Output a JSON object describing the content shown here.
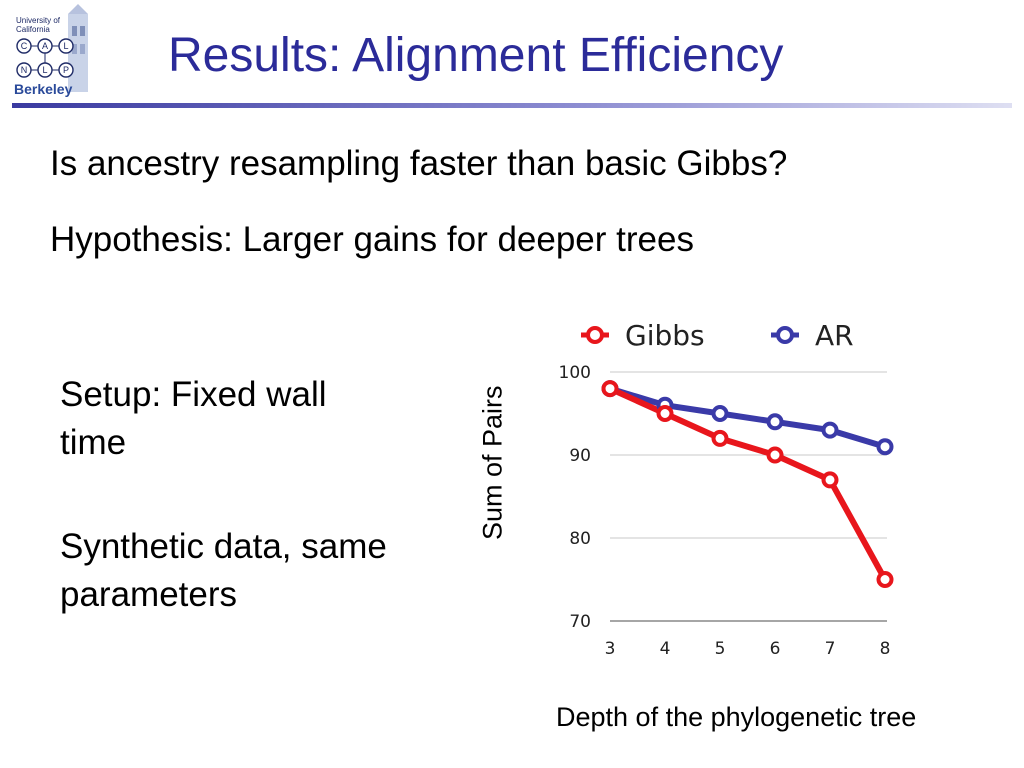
{
  "logo": {
    "top_text": "University of California",
    "letters": [
      "C",
      "A",
      "L",
      "N",
      "L",
      "P"
    ],
    "bottom_text": "Berkeley"
  },
  "slide": {
    "title": "Results: Alignment Efficiency",
    "question": "Is ancestry resampling faster than basic Gibbs?",
    "hypothesis": "Hypothesis: Larger gains for deeper trees",
    "setup": "Setup: Fixed wall time",
    "synthetic": "Synthetic data, same parameters"
  },
  "chart_data": {
    "type": "line",
    "xlabel": "Depth of the phylogenetic tree",
    "ylabel": "Sum of Pairs",
    "x": [
      3,
      4,
      5,
      6,
      7,
      8
    ],
    "ylim": [
      70,
      100
    ],
    "yticks": [
      70,
      80,
      90,
      100
    ],
    "grid": true,
    "legend_position": "top",
    "series": [
      {
        "name": "Gibbs",
        "color": "#e8161c",
        "values": [
          98,
          95,
          92,
          90,
          87,
          75
        ]
      },
      {
        "name": "AR",
        "color": "#3a3aa8",
        "values": [
          98,
          96,
          95,
          94,
          93,
          91
        ]
      }
    ]
  }
}
